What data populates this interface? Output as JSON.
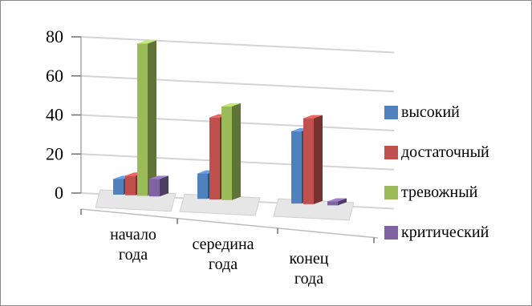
{
  "chart_data": {
    "type": "bar",
    "style": "3d-clustered",
    "title": "",
    "xlabel": "",
    "ylabel": "",
    "categories": [
      "начало года",
      "середина года",
      "конец года"
    ],
    "category_lines": [
      [
        "начало",
        "года"
      ],
      [
        "середина",
        "года"
      ],
      [
        "конец",
        "года"
      ]
    ],
    "series": [
      {
        "name": "высокий",
        "color": "#4f81bd",
        "values": [
          8,
          13,
          37
        ]
      },
      {
        "name": "достаточный",
        "color": "#c0504d",
        "values": [
          10,
          42,
          44
        ]
      },
      {
        "name": "тревожный",
        "color": "#9bbb59",
        "values": [
          78,
          48,
          0
        ]
      },
      {
        "name": "критический",
        "color": "#8064a2",
        "values": [
          9,
          0,
          2
        ]
      }
    ],
    "ylim": [
      0,
      80
    ],
    "yticks": [
      "0",
      "20",
      "40",
      "60",
      "80"
    ],
    "grid": true,
    "legend_position": "right"
  }
}
